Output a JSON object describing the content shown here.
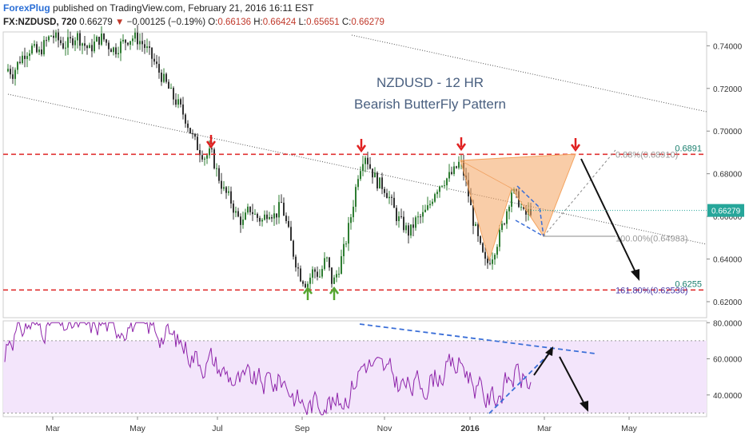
{
  "header": {
    "brand": "ForexPlug",
    "published": "published on TradingView.com, February 21, 2016 16:11 EST"
  },
  "ohlc": {
    "symbol": "FX:NZDUSD, 720",
    "last": "0.66279",
    "change": "−0.00125 (−0.19%)",
    "o_label": "O:",
    "o": "0.66136",
    "h_label": "H:",
    "h": "0.66424",
    "l_label": "L:",
    "l": "0.65651",
    "c_label": "C:",
    "c": "0.66279"
  },
  "chart_data": [
    {
      "type": "candlestick",
      "title": "NZDUSD - 12 HR",
      "subtitle": "Bearish ButterFly Pattern",
      "x_labels": [
        "Mar",
        "May",
        "Jul",
        "Sep",
        "Nov",
        "2016",
        "Mar",
        "May"
      ],
      "y_ticks": [
        0.62,
        0.64,
        0.66,
        0.68,
        0.7,
        0.72,
        0.74
      ],
      "y_tick_labels": [
        "0.62000",
        "0.64000",
        "0.66000",
        "0.68000",
        "0.70000",
        "0.72000",
        "0.74000"
      ],
      "ylim": [
        0.6125,
        0.7465
      ],
      "current_price": "0.66279",
      "current_price_value": 0.66279,
      "close_path": [
        [
          0,
          0.728
        ],
        [
          8,
          0.73
        ],
        [
          16,
          0.727
        ],
        [
          24,
          0.733
        ],
        [
          32,
          0.737
        ],
        [
          40,
          0.739
        ],
        [
          48,
          0.736
        ],
        [
          56,
          0.741
        ],
        [
          64,
          0.745
        ],
        [
          72,
          0.743
        ],
        [
          80,
          0.74
        ],
        [
          88,
          0.742
        ],
        [
          96,
          0.745
        ],
        [
          104,
          0.741
        ],
        [
          112,
          0.738
        ],
        [
          120,
          0.742
        ],
        [
          128,
          0.744
        ],
        [
          136,
          0.74
        ],
        [
          144,
          0.738
        ],
        [
          152,
          0.741
        ],
        [
          160,
          0.743
        ],
        [
          168,
          0.744
        ],
        [
          176,
          0.742
        ],
        [
          184,
          0.738
        ],
        [
          192,
          0.733
        ],
        [
          200,
          0.727
        ],
        [
          208,
          0.722
        ],
        [
          216,
          0.716
        ],
        [
          224,
          0.712
        ],
        [
          232,
          0.706
        ],
        [
          240,
          0.698
        ],
        [
          248,
          0.692
        ],
        [
          256,
          0.688
        ],
        [
          264,
          0.69
        ],
        [
          272,
          0.68
        ],
        [
          280,
          0.672
        ],
        [
          288,
          0.668
        ],
        [
          296,
          0.66
        ],
        [
          304,
          0.657
        ],
        [
          312,
          0.664
        ],
        [
          320,
          0.66
        ],
        [
          328,
          0.658
        ],
        [
          336,
          0.663
        ],
        [
          344,
          0.66
        ],
        [
          352,
          0.666
        ],
        [
          360,
          0.654
        ],
        [
          368,
          0.641
        ],
        [
          376,
          0.632
        ],
        [
          384,
          0.628
        ],
        [
          392,
          0.635
        ],
        [
          400,
          0.632
        ],
        [
          408,
          0.641
        ],
        [
          416,
          0.628
        ],
        [
          424,
          0.636
        ],
        [
          432,
          0.647
        ],
        [
          440,
          0.662
        ],
        [
          448,
          0.68
        ],
        [
          456,
          0.69
        ],
        [
          464,
          0.682
        ],
        [
          472,
          0.676
        ],
        [
          480,
          0.674
        ],
        [
          488,
          0.668
        ],
        [
          496,
          0.66
        ],
        [
          504,
          0.656
        ],
        [
          512,
          0.652
        ],
        [
          520,
          0.658
        ],
        [
          528,
          0.66
        ],
        [
          536,
          0.664
        ],
        [
          544,
          0.672
        ],
        [
          552,
          0.676
        ],
        [
          560,
          0.678
        ],
        [
          568,
          0.681
        ],
        [
          576,
          0.686
        ],
        [
          584,
          0.674
        ],
        [
          592,
          0.658
        ],
        [
          600,
          0.646
        ],
        [
          608,
          0.637
        ],
        [
          616,
          0.642
        ],
        [
          624,
          0.65
        ],
        [
          632,
          0.66
        ],
        [
          640,
          0.672
        ],
        [
          648,
          0.668
        ],
        [
          656,
          0.66
        ],
        [
          664,
          0.663
        ]
      ],
      "horizontal_levels": [
        {
          "label": "0.6891",
          "value": 0.6891,
          "color": "#e03030"
        },
        {
          "label": "0.6255",
          "value": 0.6255,
          "color": "#e03030"
        }
      ],
      "fib_labels": [
        {
          "text": "0.88%(0.68910)",
          "price": 0.6891,
          "color": "#999999"
        },
        {
          "text": "100.00%(0.64983)",
          "price": 0.64983,
          "color": "#999999"
        },
        {
          "text": "161.80%(0.62536)",
          "price": 0.62536,
          "color": "#4a3aa8"
        }
      ],
      "annotations": {
        "red_arrows": 4,
        "green_arrows": 2
      }
    },
    {
      "type": "line",
      "name": "RSI",
      "y_ticks": [
        40,
        60,
        80
      ],
      "y_tick_labels": [
        "40.0000",
        "60.0000",
        "80.0000"
      ],
      "ylim": [
        28,
        81
      ],
      "band": [
        30,
        70
      ],
      "color": "#8e24aa"
    }
  ],
  "colors": {
    "bull": "#2e7d32",
    "bear": "#333333",
    "level": "#e03030",
    "pattern_fill": "#f4a460",
    "rsi_band": "#f3e5fb",
    "price_tag": "#26a69a",
    "dashed_blue": "#3b6fd8",
    "title_color": "#4a6080"
  }
}
